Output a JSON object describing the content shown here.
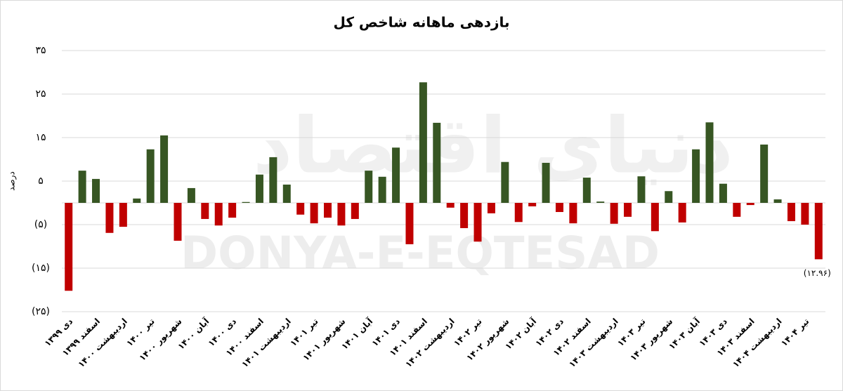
{
  "chart_data": {
    "type": "bar",
    "title": "بازدهی ماهانه شاخص کل",
    "y_label": "درصد",
    "watermark": "DONYA-E-EQTESAD",
    "watermark_fa": "دنیای اقتصاد",
    "categories": [
      "دی ۱۳۹۹",
      null,
      "اسفند ۱۳۹۹",
      null,
      "اردیبهشت ۱۴۰۰",
      null,
      "تیر ۱۴۰۰",
      null,
      "شهریور ۱۴۰۰",
      null,
      "آبان ۱۴۰۰",
      null,
      "دی ۱۴۰۰",
      null,
      "اسفند ۱۴۰۰",
      null,
      "اردیبهشت ۱۴۰۱",
      null,
      "تیر ۱۴۰۱",
      null,
      "شهریور ۱۴۰۱",
      null,
      "آبان ۱۴۰۱",
      null,
      "دی ۱۴۰۱",
      null,
      "اسفند ۱۴۰۱",
      null,
      "اردیبهشت ۱۴۰۲",
      null,
      "تیر ۱۴۰۲",
      null,
      "شهریور ۱۴۰۲",
      null,
      "آبان ۱۴۰۲",
      null,
      "دی ۱۴۰۲",
      null,
      "اسفند ۱۴۰۲",
      null,
      "اردیبهشت ۱۴۰۳",
      null,
      "تیر ۱۴۰۳",
      null,
      "شهریور ۱۴۰۳",
      null,
      "آبان ۱۴۰۳",
      null,
      "دی ۱۴۰۳",
      null,
      "اسفند ۱۴۰۳",
      null,
      "اردیبهشت ۱۴۰۴",
      null,
      "تیر ۱۴۰۴",
      null
    ],
    "values": [
      -20.2,
      7.4,
      5.5,
      -6.9,
      -5.5,
      1.0,
      12.3,
      15.5,
      -8.7,
      3.4,
      -3.7,
      -5.2,
      -3.4,
      0.2,
      6.5,
      10.5,
      4.2,
      -2.7,
      -4.7,
      -3.4,
      -5.2,
      -3.7,
      7.4,
      6.0,
      12.7,
      -9.5,
      27.7,
      18.4,
      -1.1,
      -5.8,
      -8.9,
      -2.4,
      9.4,
      -4.4,
      -0.8,
      9.2,
      -2.1,
      -4.7,
      5.8,
      0.3,
      -4.8,
      -3.2,
      6.1,
      -6.5,
      2.7,
      -4.5,
      12.3,
      18.5,
      4.4,
      -3.2,
      -0.5,
      13.4,
      0.8,
      -4.2,
      -5.0,
      -12.96
    ],
    "value_labels": [
      null,
      null,
      null,
      null,
      null,
      null,
      null,
      null,
      null,
      null,
      null,
      null,
      null,
      null,
      null,
      null,
      null,
      null,
      null,
      null,
      null,
      null,
      null,
      null,
      null,
      null,
      null,
      null,
      null,
      null,
      null,
      null,
      null,
      null,
      null,
      null,
      null,
      null,
      null,
      null,
      null,
      null,
      null,
      null,
      null,
      null,
      null,
      null,
      null,
      null,
      null,
      null,
      null,
      null,
      null,
      "(۱۲.۹۶)"
    ],
    "positive_color": "#375623",
    "negative_color": "#c00000",
    "ylim": [
      -25,
      35
    ],
    "yticks": [
      {
        "value": -25,
        "label": "(۲۵)"
      },
      {
        "value": -15,
        "label": "(۱۵)"
      },
      {
        "value": -5,
        "label": "(۵)"
      },
      {
        "value": 5,
        "label": "۵"
      },
      {
        "value": 15,
        "label": "۱۵"
      },
      {
        "value": 25,
        "label": "۲۵"
      },
      {
        "value": 35,
        "label": "۳۵"
      }
    ],
    "grid": true
  }
}
